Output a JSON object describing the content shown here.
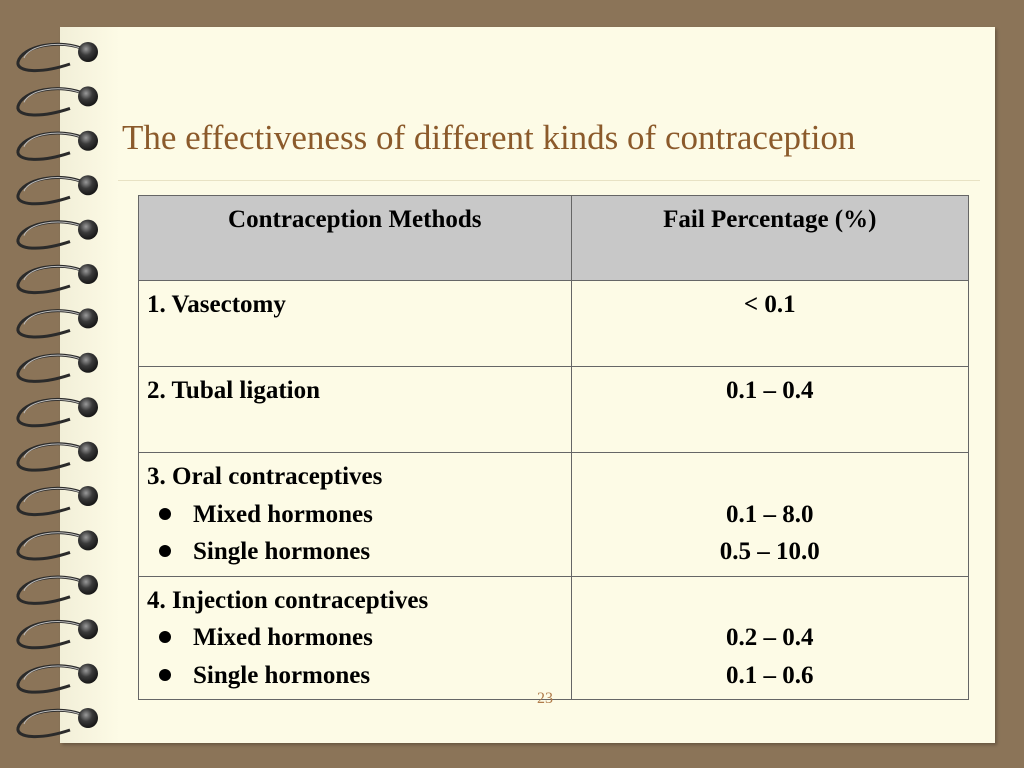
{
  "slide": {
    "title": "The effectiveness of different kinds of contraception",
    "page_number": "23"
  },
  "table": {
    "headers": [
      "Contraception Methods",
      "Fail Percentage (%)"
    ],
    "rows": [
      {
        "method": "1. Vasectomy",
        "value": "< 0.1"
      },
      {
        "method": "2. Tubal ligation",
        "value": "0.1 – 0.4"
      },
      {
        "method": "3. Oral contraceptives",
        "subitems": [
          {
            "label": "Mixed hormones",
            "value": "0.1 – 8.0"
          },
          {
            "label": "Single hormones",
            "value": "0.5 – 10.0"
          }
        ]
      },
      {
        "method": "4. Injection contraceptives",
        "subitems": [
          {
            "label": "Mixed hormones",
            "value": "0.2 – 0.4"
          },
          {
            "label": "Single hormones",
            "value": "0.1 – 0.6"
          }
        ]
      }
    ]
  },
  "colors": {
    "background": "#8b7458",
    "paper": "#fdfbe6",
    "title": "#8b5a2b",
    "header_fill": "#c8c8c8"
  },
  "icons": {
    "spiral": "spiral-binding-icon",
    "bullet": "bullet-icon"
  }
}
